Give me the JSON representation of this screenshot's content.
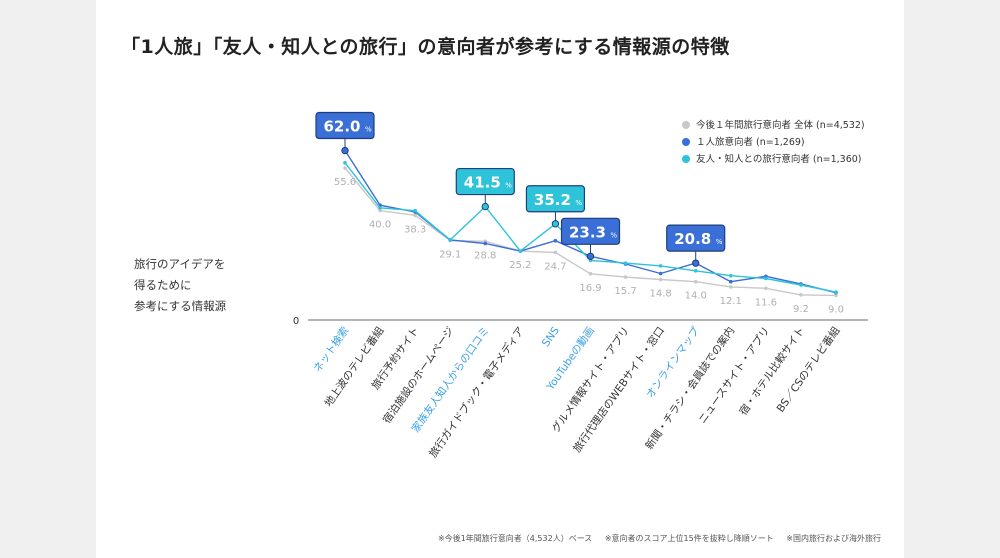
{
  "title": "「1人旅」「友人・知人との旅行」の意向者が参考にする情報源の特徴",
  "side_label": "旅行のアイデアを\n得るために\n参考にする情報源",
  "footnotes": [
    "※今後1年間旅行意向者（4,532人）ベース",
    "※意向者のスコア上位15件を抜粋し降順ソート",
    "※国内旅行および海外旅行"
  ],
  "colors": {
    "overall": "#c8c8c8",
    "solo": "#3a6fd8",
    "friends": "#2ec3d8",
    "callout_solo": "#3a6fd8",
    "callout_friends": "#2ec3d8",
    "highlight_label": "#3aa0e8",
    "axis": "#888888",
    "text": "#333333"
  },
  "chart_data": {
    "type": "line",
    "title": "「1人旅」「友人・知人との旅行」の意向者が参考にする情報源の特徴",
    "ylabel": "旅行のアイデアを得るために参考にする情報源",
    "y_tick": "0",
    "ylim": [
      0,
      75
    ],
    "legend_position": "top-right",
    "categories": [
      "ネット検索",
      "地上波のテレビ番組",
      "旅行予約サイト",
      "宿泊施設のホームページ",
      "家族友人知人からの口コミ",
      "旅行ガイドブック・電子メディア",
      "SNS",
      "YouTubeの動画",
      "グルメ情報サイト・アプリ",
      "旅行代理店のWEBサイト・窓口",
      "オンラインマップ",
      "新聞・チラシ・会員誌での案内",
      "ニュースサイト・アプリ",
      "宿・ホテル比較サイト",
      "BS／CSのテレビ番組"
    ],
    "highlighted_categories": [
      0,
      4,
      6,
      7,
      10
    ],
    "series": [
      {
        "name": "今後１年間旅行意向者 全体 (n=4,532)",
        "color": "#c8c8c8",
        "values": [
          55.6,
          40.0,
          38.3,
          29.1,
          28.8,
          25.2,
          24.7,
          16.9,
          15.7,
          14.8,
          14.0,
          12.1,
          11.6,
          9.2,
          9.0
        ],
        "labels": [
          "55.6",
          "40.0",
          "38.3",
          "29.1",
          "28.8",
          "25.2",
          "24.7",
          "16.9",
          "15.7",
          "14.8",
          "14.0",
          "12.1",
          "11.6",
          "9.2",
          "9.0"
        ]
      },
      {
        "name": "１人旅意向者 (n=1,269)",
        "color": "#3a6fd8",
        "values": [
          62.0,
          42.0,
          39.5,
          29.3,
          28.0,
          25.2,
          29.0,
          23.3,
          20.5,
          17.0,
          20.8,
          14.0,
          16.0,
          13.2,
          10.0
        ]
      },
      {
        "name": "友人・知人との旅行意向者 (n=1,360)",
        "color": "#2ec3d8",
        "values": [
          57.5,
          41.0,
          40.0,
          29.3,
          41.5,
          25.2,
          35.2,
          21.8,
          20.8,
          19.8,
          18.0,
          16.2,
          15.2,
          12.8,
          10.2
        ]
      }
    ],
    "callouts": [
      {
        "series": 1,
        "index": 0,
        "value": "62.0",
        "unit": "%"
      },
      {
        "series": 2,
        "index": 4,
        "value": "41.5",
        "unit": "%"
      },
      {
        "series": 2,
        "index": 6,
        "value": "35.2",
        "unit": "%"
      },
      {
        "series": 1,
        "index": 7,
        "value": "23.3",
        "unit": "%"
      },
      {
        "series": 1,
        "index": 10,
        "value": "20.8",
        "unit": "%"
      }
    ]
  }
}
